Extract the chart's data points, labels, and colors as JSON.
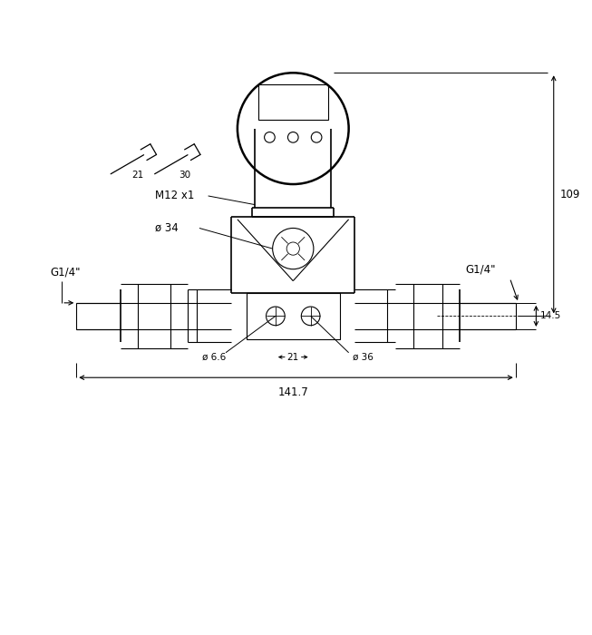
{
  "bg_color": "#ffffff",
  "line_color": "#000000",
  "fig_width": 6.53,
  "fig_height": 7.0,
  "dpi": 100,
  "annotations": {
    "M12x1": "M12 x1",
    "dia34": "ø 34",
    "dia66": "ø 6.6",
    "dim21": "21",
    "dia36": "ø 36",
    "dim1417": "141.7",
    "dim109": "109",
    "dim145": "14.5",
    "G14_left": "G1/4\"",
    "G14_right": "G1/4\"",
    "wrench21": "21",
    "wrench30": "30"
  }
}
